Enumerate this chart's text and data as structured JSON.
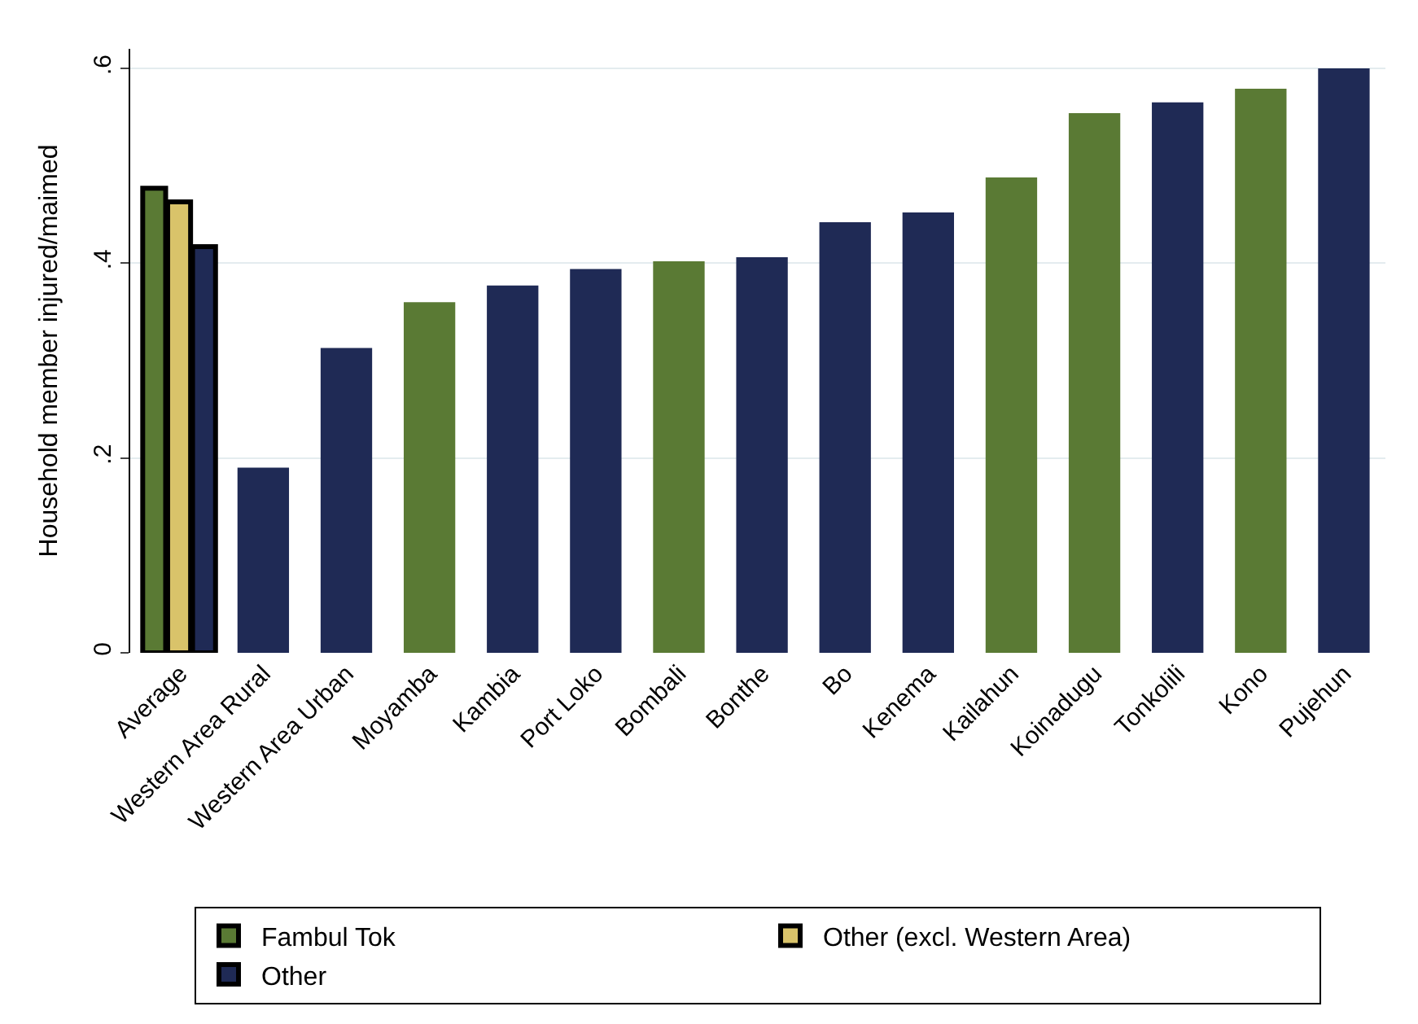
{
  "chart_data": {
    "type": "bar",
    "ylabel": "Household member injured/maimed",
    "categories": [
      "Average",
      "Western Area Rural",
      "Western Area Urban",
      "Moyamba",
      "Kambia",
      "Port Loko",
      "Bombali",
      "Bonthe",
      "Bo",
      "Kenema",
      "Kailahun",
      "Koinadugu",
      "Tonkolili",
      "Kono",
      "Pujehun"
    ],
    "series": [
      {
        "name": "Fambul Tok",
        "color": "#5a7a34",
        "values": [
          0.477,
          null,
          null,
          0.36,
          null,
          null,
          0.402,
          null,
          null,
          null,
          0.488,
          0.554,
          null,
          0.579,
          null
        ]
      },
      {
        "name": "Other (excl. Western Area)",
        "color": "#d9c36a",
        "values": [
          0.463,
          null,
          null,
          null,
          null,
          null,
          null,
          null,
          null,
          null,
          null,
          null,
          null,
          null,
          null
        ]
      },
      {
        "name": "Other",
        "color": "#1f2a55",
        "values": [
          0.417,
          0.19,
          0.313,
          null,
          0.377,
          0.394,
          null,
          0.406,
          0.442,
          0.452,
          null,
          null,
          0.565,
          null,
          0.6
        ]
      }
    ],
    "ylim": [
      0,
      0.62
    ],
    "yticks": [
      {
        "value": 0,
        "label": "0"
      },
      {
        "value": 0.2,
        "label": ".2"
      },
      {
        "value": 0.4,
        "label": ".4"
      },
      {
        "value": 0.6,
        "label": ".6"
      }
    ],
    "grid": "y",
    "legend": "bottom"
  }
}
